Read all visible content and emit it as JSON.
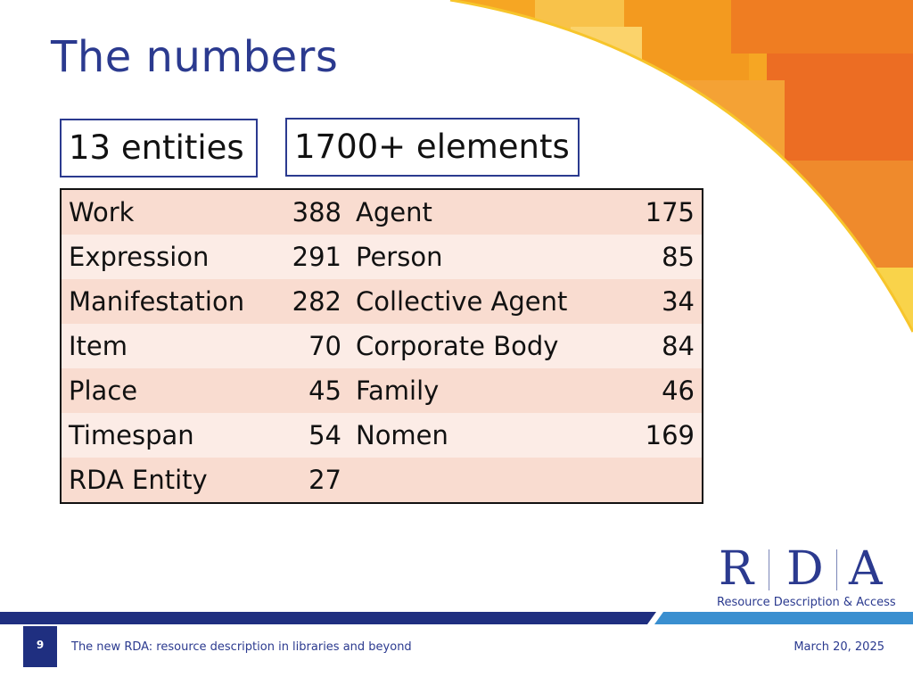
{
  "slide": {
    "title": "The numbers",
    "entities_label": "13 entities",
    "elements_label": "1700+ elements",
    "rows": [
      {
        "left_name": "Work",
        "left_count": "388",
        "right_name": "Agent",
        "right_count": "175"
      },
      {
        "left_name": "Expression",
        "left_count": "291",
        "right_name": "Person",
        "right_count": "85"
      },
      {
        "left_name": "Manifestation",
        "left_count": "282",
        "right_name": "Collective Agent",
        "right_count": "34"
      },
      {
        "left_name": "Item",
        "left_count": "70",
        "right_name": "Corporate Body",
        "right_count": "84"
      },
      {
        "left_name": "Place",
        "left_count": "45",
        "right_name": "Family",
        "right_count": "46"
      },
      {
        "left_name": "Timespan",
        "left_count": "54",
        "right_name": "Nomen",
        "right_count": "169"
      },
      {
        "left_name": "RDA Entity",
        "left_count": "27",
        "right_name": "",
        "right_count": ""
      }
    ]
  },
  "logo": {
    "letters": [
      "R",
      "D",
      "A"
    ],
    "subtitle": "Resource Description & Access"
  },
  "footer": {
    "page_number": "9",
    "presentation_title": "The new RDA: resource description in libraries and beyond",
    "date": "March 20, 2025"
  },
  "colors": {
    "title_blue": "#2b3a8f",
    "row_dark": "#f9dcd0",
    "row_light": "#fcece6",
    "footer_navy": "#1f2f80",
    "footer_light_blue": "#3a8fd0",
    "accent_orange": "#f28a1e",
    "accent_yellow": "#f7c52b"
  }
}
